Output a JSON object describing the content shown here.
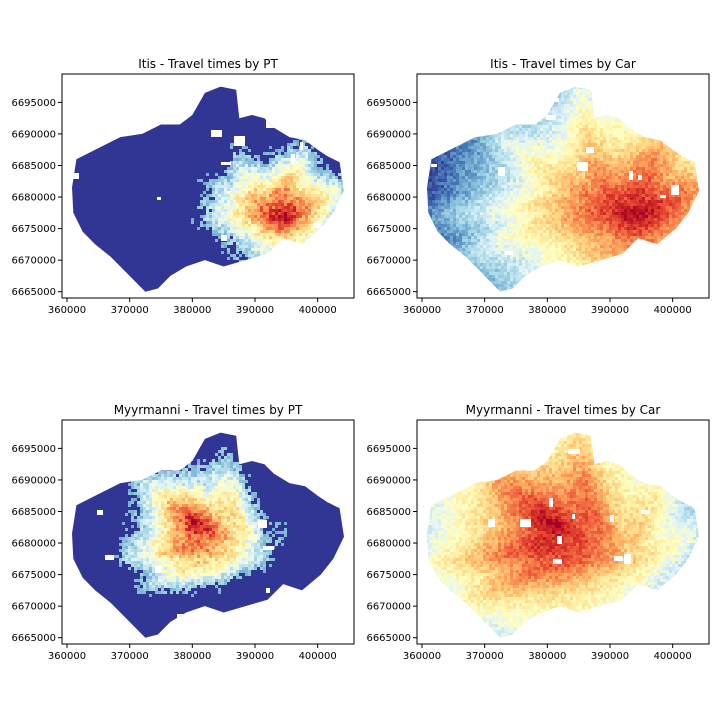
{
  "figure": {
    "background": "#ffffff"
  },
  "colormap": [
    "#313695",
    "#4575b4",
    "#74add1",
    "#abd9e9",
    "#e0f3f8",
    "#ffffbf",
    "#fee090",
    "#fdae61",
    "#f46d43",
    "#d73027",
    "#a50026"
  ],
  "chart_data": [
    {
      "type": "heatmap",
      "title": "Itis - Travel times by PT",
      "mode": "PT",
      "origin": "Itis",
      "origin_xy": [
        394500,
        6677000
      ],
      "x_ticks": [
        "360000",
        "370000",
        "380000",
        "390000",
        "400000"
      ],
      "y_ticks": [
        "6665000",
        "6670000",
        "6675000",
        "6680000",
        "6685000",
        "6690000",
        "6695000"
      ],
      "xlim": [
        359200,
        405800
      ],
      "ylim": [
        6664000,
        6699500
      ],
      "colormap_reversed": true
    },
    {
      "type": "heatmap",
      "title": "Itis - Travel times by Car",
      "mode": "Car",
      "origin": "Itis",
      "origin_xy": [
        394500,
        6677000
      ],
      "x_ticks": [
        "360000",
        "370000",
        "380000",
        "390000",
        "400000"
      ],
      "y_ticks": [
        "6665000",
        "6670000",
        "6675000",
        "6680000",
        "6685000",
        "6690000",
        "6695000"
      ],
      "xlim": [
        359200,
        405800
      ],
      "ylim": [
        6664000,
        6699500
      ],
      "colormap_reversed": true
    },
    {
      "type": "heatmap",
      "title": "Myyrmanni - Travel times by PT",
      "mode": "PT",
      "origin": "Myyrmanni",
      "origin_xy": [
        380500,
        6682500
      ],
      "x_ticks": [
        "360000",
        "370000",
        "380000",
        "390000",
        "400000"
      ],
      "y_ticks": [
        "6665000",
        "6670000",
        "6675000",
        "6680000",
        "6685000",
        "6690000",
        "6695000"
      ],
      "xlim": [
        359200,
        405800
      ],
      "ylim": [
        6664000,
        6699500
      ],
      "colormap_reversed": true
    },
    {
      "type": "heatmap",
      "title": "Myyrmanni - Travel times by Car",
      "mode": "Car",
      "origin": "Myyrmanni",
      "origin_xy": [
        380500,
        6682500
      ],
      "x_ticks": [
        "360000",
        "370000",
        "380000",
        "390000",
        "400000"
      ],
      "y_ticks": [
        "6665000",
        "6670000",
        "6675000",
        "6680000",
        "6685000",
        "6690000",
        "6695000"
      ],
      "xlim": [
        359200,
        405800
      ],
      "ylim": [
        6664000,
        6699500
      ],
      "colormap_reversed": true
    }
  ],
  "region_boundary": {
    "units": "map coordinates (ETRS-TM35FIN)",
    "outline": [
      [
        361500,
        6686000
      ],
      [
        364500,
        6687500
      ],
      [
        368500,
        6689500
      ],
      [
        372000,
        6690000
      ],
      [
        375000,
        6691500
      ],
      [
        378000,
        6691500
      ],
      [
        380000,
        6693000
      ],
      [
        382000,
        6696500
      ],
      [
        384500,
        6697500
      ],
      [
        387000,
        6697000
      ],
      [
        387500,
        6692500
      ],
      [
        389500,
        6693000
      ],
      [
        391500,
        6692500
      ],
      [
        393000,
        6691000
      ],
      [
        395500,
        6689500
      ],
      [
        398000,
        6689000
      ],
      [
        400000,
        6687500
      ],
      [
        401500,
        6686500
      ],
      [
        403500,
        6685500
      ],
      [
        404200,
        6681000
      ],
      [
        402500,
        6677500
      ],
      [
        400500,
        6675000
      ],
      [
        397500,
        6672500
      ],
      [
        394500,
        6673500
      ],
      [
        392000,
        6671000
      ],
      [
        388500,
        6670000
      ],
      [
        385000,
        6669000
      ],
      [
        382000,
        6670000
      ],
      [
        379000,
        6669000
      ],
      [
        376500,
        6667500
      ],
      [
        374500,
        6665500
      ],
      [
        372500,
        6665000
      ],
      [
        371000,
        6666500
      ],
      [
        369000,
        6668500
      ],
      [
        367000,
        6670500
      ],
      [
        364500,
        6672500
      ],
      [
        362500,
        6674500
      ],
      [
        361000,
        6677500
      ],
      [
        360800,
        6681500
      ]
    ]
  }
}
